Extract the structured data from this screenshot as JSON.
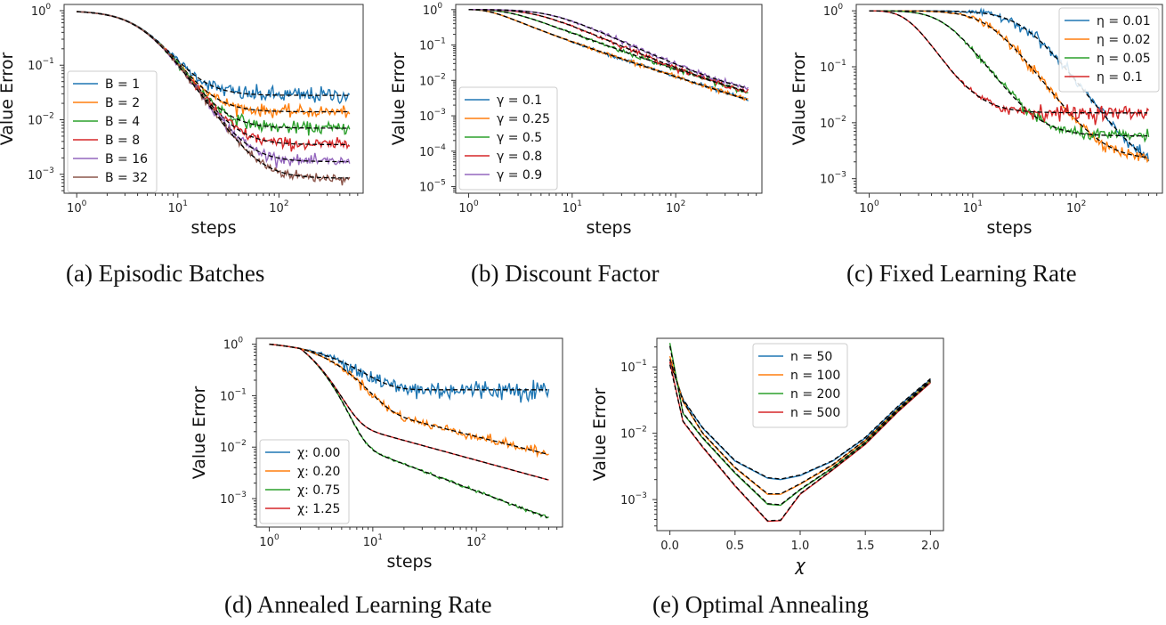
{
  "figure": {
    "colors": [
      "#1f77b4",
      "#ff7f0e",
      "#2ca02c",
      "#d62728",
      "#9467bd",
      "#8c564b"
    ],
    "fit_color": "#000000"
  },
  "chart_data": [
    {
      "id": "a",
      "type": "line",
      "caption": "(a)  Episodic Batches",
      "xlabel": "steps",
      "ylabel": "Value Error",
      "xscale": "log",
      "yscale": "log",
      "xlim": [
        0.75,
        680
      ],
      "ylim": [
        0.00045,
        1.3
      ],
      "xticks": [
        {
          "v": 1,
          "b": "10",
          "e": "0"
        },
        {
          "v": 10,
          "b": "10",
          "e": "1"
        },
        {
          "v": 100,
          "b": "10",
          "e": "2"
        }
      ],
      "yticks": [
        {
          "v": 1,
          "b": "10",
          "e": "0"
        },
        {
          "v": 0.1,
          "b": "10",
          "e": "−1"
        },
        {
          "v": 0.01,
          "b": "10",
          "e": "−2"
        },
        {
          "v": 0.001,
          "b": "10",
          "e": "−3"
        }
      ],
      "legend": {
        "position": "center-left"
      },
      "curve_kind": "decay_plateau",
      "series": [
        {
          "name": "B = 1",
          "plateau": 0.028,
          "knee": 7,
          "start": 1.0,
          "noise": 0.35
        },
        {
          "name": "B = 2",
          "plateau": 0.014,
          "knee": 8.5,
          "start": 1.0,
          "noise": 0.25
        },
        {
          "name": "B = 4",
          "plateau": 0.007,
          "knee": 10,
          "start": 1.0,
          "noise": 0.25
        },
        {
          "name": "B = 8",
          "plateau": 0.0035,
          "knee": 12,
          "start": 1.0,
          "noise": 0.25
        },
        {
          "name": "B = 16",
          "plateau": 0.0017,
          "knee": 15,
          "start": 1.0,
          "noise": 0.22
        },
        {
          "name": "B = 32",
          "plateau": 0.00085,
          "knee": 18,
          "start": 1.0,
          "noise": 0.22
        }
      ],
      "x_range": [
        1,
        500
      ]
    },
    {
      "id": "b",
      "type": "line",
      "caption": "(b)  Discount Factor",
      "xlabel": "steps",
      "ylabel": "Value Error",
      "xscale": "log",
      "yscale": "log",
      "xlim": [
        0.75,
        680
      ],
      "ylim": [
        6.5e-06,
        1.4
      ],
      "xticks": [
        {
          "v": 1,
          "b": "10",
          "e": "0"
        },
        {
          "v": 10,
          "b": "10",
          "e": "1"
        },
        {
          "v": 100,
          "b": "10",
          "e": "2"
        }
      ],
      "yticks": [
        {
          "v": 1,
          "b": "10",
          "e": "0"
        },
        {
          "v": 0.1,
          "b": "10",
          "e": "−1"
        },
        {
          "v": 0.01,
          "b": "10",
          "e": "−2"
        },
        {
          "v": 0.001,
          "b": "10",
          "e": "−3"
        },
        {
          "v": 0.0001,
          "b": "10",
          "e": "−4"
        },
        {
          "v": 1e-05,
          "b": "10",
          "e": "−5"
        }
      ],
      "legend": {
        "position": "lower-left"
      },
      "curve_kind": "power_plateau",
      "series": [
        {
          "name": "γ = 0.1",
          "plateau": 1.6e-05,
          "knee": 1.0,
          "start": 1.0,
          "noise": 0.12,
          "slope": 1.9
        },
        {
          "name": "γ = 0.25",
          "plateau": 0.0001,
          "knee": 1.0,
          "start": 1.0,
          "noise": 0.15,
          "slope": 1.9
        },
        {
          "name": "γ = 0.5",
          "plateau": 0.00045,
          "knee": 2.0,
          "start": 1.0,
          "noise": 0.15,
          "slope": 2.0
        },
        {
          "name": "γ = 0.8",
          "plateau": 0.0018,
          "knee": 4.0,
          "start": 1.0,
          "noise": 0.15,
          "slope": 2.4
        },
        {
          "name": "γ = 0.9",
          "plateau": 0.0028,
          "knee": 6.0,
          "start": 1.0,
          "noise": 0.15,
          "slope": 2.6
        }
      ],
      "x_range": [
        1,
        500
      ]
    },
    {
      "id": "c",
      "type": "line",
      "caption": "(c)  Fixed Learning Rate",
      "xlabel": "steps",
      "ylabel": "Value Error",
      "xscale": "log",
      "yscale": "log",
      "xlim": [
        0.75,
        680
      ],
      "ylim": [
        0.00055,
        1.3
      ],
      "xticks": [
        {
          "v": 1,
          "b": "10",
          "e": "0"
        },
        {
          "v": 10,
          "b": "10",
          "e": "1"
        },
        {
          "v": 100,
          "b": "10",
          "e": "2"
        }
      ],
      "yticks": [
        {
          "v": 1,
          "b": "10",
          "e": "0"
        },
        {
          "v": 0.1,
          "b": "10",
          "e": "−1"
        },
        {
          "v": 0.01,
          "b": "10",
          "e": "−2"
        },
        {
          "v": 0.001,
          "b": "10",
          "e": "−3"
        }
      ],
      "legend": {
        "position": "upper-right"
      },
      "curve_kind": "sigmoid_plateau",
      "series": [
        {
          "name": "η = 0.01",
          "plateau": 0.00105,
          "knee": 30,
          "start": 1.0,
          "noise": 0.22
        },
        {
          "name": "η = 0.02",
          "plateau": 0.0022,
          "knee": 14,
          "start": 1.0,
          "noise": 0.22
        },
        {
          "name": "η = 0.05",
          "plateau": 0.0058,
          "knee": 5,
          "start": 1.0,
          "noise": 0.22
        },
        {
          "name": "η = 0.1",
          "plateau": 0.015,
          "knee": 1.8,
          "start": 1.0,
          "noise": 0.3
        }
      ],
      "x_range": [
        1,
        500
      ]
    },
    {
      "id": "d",
      "type": "line",
      "caption": "(d)  Annealed Learning Rate",
      "xlabel": "steps",
      "ylabel": "Value Error",
      "xscale": "log",
      "yscale": "log",
      "xlim": [
        0.75,
        680
      ],
      "ylim": [
        0.00028,
        1.3
      ],
      "xticks": [
        {
          "v": 1,
          "b": "10",
          "e": "0"
        },
        {
          "v": 10,
          "b": "10",
          "e": "1"
        },
        {
          "v": 100,
          "b": "10",
          "e": "2"
        }
      ],
      "yticks": [
        {
          "v": 1,
          "b": "10",
          "e": "0"
        },
        {
          "v": 0.1,
          "b": "10",
          "e": "−1"
        },
        {
          "v": 0.01,
          "b": "10",
          "e": "−2"
        },
        {
          "v": 0.001,
          "b": "10",
          "e": "−3"
        }
      ],
      "legend": {
        "position": "lower-left"
      },
      "curve_kind": "annealed",
      "series": [
        {
          "name": "χ: 0.00",
          "end": 0.13,
          "plateau": 0.13,
          "noise": 0.45
        },
        {
          "name": "χ: 0.20",
          "end": 0.0072,
          "plateau": 0.03,
          "noise": 0.2
        },
        {
          "name": "χ: 0.75",
          "end": 0.00042,
          "plateau": 0.012,
          "noise": 0.06
        },
        {
          "name": "χ: 1.25",
          "end": 0.0023,
          "plateau": 0.014,
          "noise": 0.0
        }
      ],
      "x_range": [
        1,
        500
      ]
    },
    {
      "id": "e",
      "type": "line",
      "caption": "(e)  Optimal Annealing",
      "xlabel": "χ",
      "ylabel": "Value Error",
      "xscale": "linear",
      "yscale": "log",
      "xlim": [
        -0.1,
        2.1
      ],
      "ylim": [
        0.00034,
        0.27
      ],
      "xticks": [
        {
          "v": 0.0,
          "t": "0.0"
        },
        {
          "v": 0.5,
          "t": "0.5"
        },
        {
          "v": 1.0,
          "t": "1.0"
        },
        {
          "v": 1.5,
          "t": "1.5"
        },
        {
          "v": 2.0,
          "t": "2.0"
        }
      ],
      "yticks": [
        {
          "v": 0.1,
          "b": "10",
          "e": "−1"
        },
        {
          "v": 0.01,
          "b": "10",
          "e": "−2"
        },
        {
          "v": 0.001,
          "b": "10",
          "e": "−3"
        }
      ],
      "legend": {
        "position": "upper-center"
      },
      "curve_kind": "points",
      "series": [
        {
          "name": "n = 50",
          "x": [
            0.0,
            0.1,
            0.25,
            0.5,
            0.75,
            0.85,
            1.0,
            1.25,
            1.5,
            1.75,
            2.0
          ],
          "y": [
            0.13,
            0.032,
            0.012,
            0.0038,
            0.0021,
            0.002,
            0.0023,
            0.0038,
            0.0085,
            0.025,
            0.065
          ]
        },
        {
          "name": "n = 100",
          "x": [
            0.0,
            0.1,
            0.25,
            0.5,
            0.75,
            0.85,
            1.0,
            1.25,
            1.5,
            1.75,
            2.0
          ],
          "y": [
            0.145,
            0.03,
            0.01,
            0.003,
            0.0012,
            0.0012,
            0.0017,
            0.0033,
            0.0078,
            0.023,
            0.062
          ]
        },
        {
          "name": "n = 200",
          "x": [
            0.0,
            0.1,
            0.25,
            0.5,
            0.75,
            0.85,
            1.0,
            1.25,
            1.5,
            1.75,
            2.0
          ],
          "y": [
            0.23,
            0.02,
            0.0085,
            0.0025,
            0.00085,
            0.00082,
            0.0014,
            0.003,
            0.0072,
            0.022,
            0.06
          ]
        },
        {
          "name": "n = 500",
          "x": [
            0.0,
            0.1,
            0.25,
            0.5,
            0.75,
            0.85,
            1.0,
            1.25,
            1.5,
            1.75,
            2.0
          ],
          "y": [
            0.12,
            0.015,
            0.0062,
            0.0016,
            0.00047,
            0.00048,
            0.0012,
            0.0028,
            0.0068,
            0.021,
            0.058
          ]
        }
      ]
    }
  ]
}
